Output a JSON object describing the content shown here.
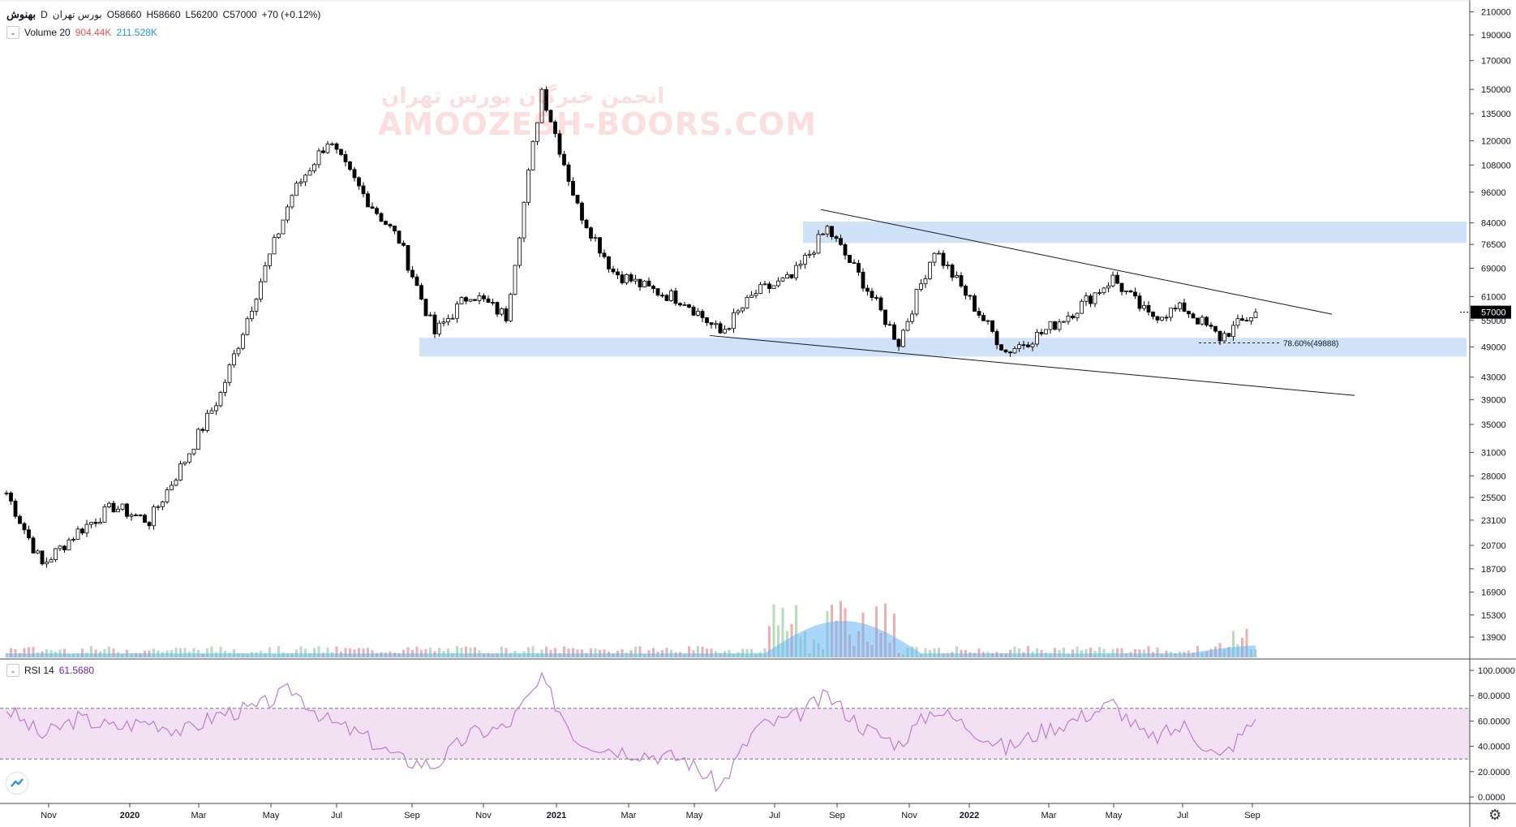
{
  "legend": {
    "symbol": "بهنوش",
    "interval": "D",
    "exchange": "بورس تهران",
    "open": "O58660",
    "high": "H58660",
    "low": "L56200",
    "close": "C57000",
    "change": "+70 (+0.12%)",
    "volume_label": "Volume 20",
    "volume_value": "904.44K",
    "volume_ma": "211.528K",
    "rsi_label": "RSI 14",
    "rsi_value": "61.5680"
  },
  "watermark": {
    "line1": "انجمن خبرگان بورس تهران",
    "line2": "AMOOZESH-BOORS.COM"
  },
  "price_axis": {
    "ticks": [
      "210000",
      "190000",
      "170000",
      "150000",
      "135000",
      "120000",
      "108000",
      "96000",
      "84000",
      "76500",
      "69000",
      "61000",
      "55000",
      "49000",
      "43000",
      "39000",
      "35000",
      "31000",
      "28000",
      "25500",
      "23100",
      "20700",
      "18700",
      "16900",
      "15300",
      "13900"
    ],
    "last_price": "57000"
  },
  "rsi_axis": {
    "ticks": [
      "100.0000",
      "80.0000",
      "60.0000",
      "40.0000",
      "20.0000",
      "0.0000"
    ]
  },
  "time_axis": {
    "ticks": [
      "Nov",
      "2020",
      "Mar",
      "May",
      "Jul",
      "Sep",
      "Nov",
      "2021",
      "Mar",
      "May",
      "Jul",
      "Sep",
      "Nov",
      "2022",
      "Mar",
      "May",
      "Jul",
      "Sep"
    ]
  },
  "fib_label": "78.60%(49888)",
  "colors": {
    "zone": "#bbd6f5",
    "rsi_band": "#f2e0f3",
    "rsi_line": "#c17bd0",
    "candle": "#000000",
    "vol_up": "#a5d6a7",
    "vol_down": "#ef9a9a",
    "vol_ma": "#64b5f6",
    "last_price_bg": "#000000"
  },
  "chart_data": {
    "type": "line",
    "title": "بهنوش",
    "scale": "log",
    "ylim": [
      13000,
      215000
    ],
    "x": [
      "2019-10",
      "2019-11",
      "2019-12",
      "2020-01",
      "2020-02",
      "2020-03",
      "2020-04",
      "2020-05",
      "2020-06",
      "2020-07",
      "2020-08",
      "2020-09",
      "2020-10",
      "2020-11",
      "2020-12",
      "2021-01",
      "2021-02",
      "2021-03",
      "2021-04",
      "2021-05",
      "2021-06",
      "2021-07",
      "2021-08",
      "2021-09",
      "2021-10",
      "2021-11",
      "2021-12",
      "2022-01",
      "2022-02",
      "2022-03",
      "2022-04",
      "2022-05",
      "2022-06",
      "2022-07",
      "2022-08",
      "2022-09"
    ],
    "series": [
      {
        "values": [
          26000,
          19000,
          22000,
          24500,
          23000,
          30000,
          40000,
          62000,
          95000,
          120000,
          95000,
          78000,
          52000,
          62000,
          56000,
          150000,
          90000,
          68000,
          63000,
          60000,
          52000,
          62000,
          66000,
          82000,
          65000,
          50000,
          75000,
          60000,
          48000,
          52000,
          58000,
          66000,
          56000,
          58000,
          51000,
          57000
        ]
      }
    ],
    "rsi": {
      "name": "RSI 14",
      "ylim": [
        0,
        100
      ],
      "bands": [
        30,
        70
      ],
      "values": [
        70,
        48,
        62,
        55,
        60,
        52,
        66,
        70,
        85,
        60,
        48,
        30,
        25,
        50,
        55,
        92,
        45,
        38,
        34,
        30,
        8,
        55,
        62,
        80,
        55,
        42,
        70,
        55,
        38,
        52,
        62,
        74,
        45,
        56,
        30,
        61.568
      ]
    },
    "volume": {
      "name": "Volume 20",
      "ma_name": "211.528K"
    }
  }
}
